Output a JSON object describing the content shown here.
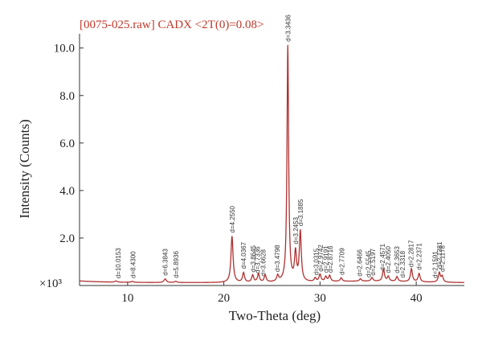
{
  "chart_data": {
    "type": "line",
    "title": "[0075-025.raw] CADX <2T(0)=0.08>",
    "xlabel": "Two-Theta (deg)",
    "ylabel": "Intensity (Counts)",
    "y_multiplier_label": "×10³",
    "xlim": [
      5,
      45
    ],
    "ylim": [
      0,
      10.6
    ],
    "x_ticks": [
      10,
      20,
      30,
      40
    ],
    "y_ticks": [
      2.0,
      4.0,
      6.0,
      8.0,
      10.0
    ],
    "y_tick_labels": [
      "2.0",
      "4.0",
      "6.0",
      "8.0",
      "10.0"
    ],
    "x_tick_labels": [
      "10",
      "20",
      "30",
      "40"
    ],
    "baseline": 0.12,
    "peaks": [
      {
        "x": 8.8,
        "y": 0.05,
        "w": 0.15
      },
      {
        "x": 10.5,
        "y": 0.04,
        "w": 0.15
      },
      {
        "x": 13.9,
        "y": 0.15,
        "w": 0.15
      },
      {
        "x": 15.0,
        "y": 0.05,
        "w": 0.15
      },
      {
        "x": 20.85,
        "y": 1.95,
        "w": 0.13
      },
      {
        "x": 22.05,
        "y": 0.4,
        "w": 0.12
      },
      {
        "x": 23.0,
        "y": 0.3,
        "w": 0.12
      },
      {
        "x": 23.6,
        "y": 0.35,
        "w": 0.12
      },
      {
        "x": 24.3,
        "y": 0.3,
        "w": 0.12
      },
      {
        "x": 25.6,
        "y": 0.25,
        "w": 0.12
      },
      {
        "x": 26.65,
        "y": 9.95,
        "w": 0.1
      },
      {
        "x": 27.45,
        "y": 1.2,
        "w": 0.12
      },
      {
        "x": 27.95,
        "y": 2.1,
        "w": 0.12
      },
      {
        "x": 29.5,
        "y": 0.15,
        "w": 0.12
      },
      {
        "x": 30.0,
        "y": 0.3,
        "w": 0.12
      },
      {
        "x": 30.6,
        "y": 0.2,
        "w": 0.12
      },
      {
        "x": 31.0,
        "y": 0.25,
        "w": 0.12
      },
      {
        "x": 32.2,
        "y": 0.15,
        "w": 0.12
      },
      {
        "x": 34.2,
        "y": 0.1,
        "w": 0.12
      },
      {
        "x": 35.4,
        "y": 0.15,
        "w": 0.12
      },
      {
        "x": 36.6,
        "y": 0.5,
        "w": 0.12
      },
      {
        "x": 37.1,
        "y": 0.2,
        "w": 0.12
      },
      {
        "x": 38.0,
        "y": 0.2,
        "w": 0.12
      },
      {
        "x": 39.5,
        "y": 0.55,
        "w": 0.12
      },
      {
        "x": 40.3,
        "y": 0.35,
        "w": 0.12
      },
      {
        "x": 42.4,
        "y": 0.4,
        "w": 0.12
      },
      {
        "x": 42.7,
        "y": 0.25,
        "w": 0.12
      }
    ],
    "peak_labels": [
      {
        "x": 9.0,
        "text": "d=10.0153"
      },
      {
        "x": 10.55,
        "text": "d=8.4300"
      },
      {
        "x": 13.9,
        "text": "d=6.3843"
      },
      {
        "x": 15.0,
        "text": "d=5.8936"
      },
      {
        "x": 20.85,
        "text": "d=4.2550"
      },
      {
        "x": 22.05,
        "text": "d=4.0367"
      },
      {
        "x": 23.05,
        "text": "d=3.8645"
      },
      {
        "x": 23.5,
        "text": "d=3.7336"
      },
      {
        "x": 24.1,
        "text": "d=3.6628"
      },
      {
        "x": 25.55,
        "text": "d=3.4798"
      },
      {
        "x": 26.65,
        "text": "d=3.3436"
      },
      {
        "x": 27.45,
        "text": "d=3.2453"
      },
      {
        "x": 27.95,
        "text": "d=3.1885"
      },
      {
        "x": 29.6,
        "text": "d=3.0315"
      },
      {
        "x": 30.05,
        "text": "d=2.9742"
      },
      {
        "x": 30.6,
        "text": "d=2.9191"
      },
      {
        "x": 31.05,
        "text": "d=2.8716"
      },
      {
        "x": 32.25,
        "text": "d=2.7709"
      },
      {
        "x": 34.1,
        "text": "d=2.6466"
      },
      {
        "x": 35.0,
        "text": "d=2.5545"
      },
      {
        "x": 35.5,
        "text": "d=2.5197"
      },
      {
        "x": 36.5,
        "text": "d=2.4571"
      },
      {
        "x": 37.05,
        "text": "d=2.4050"
      },
      {
        "x": 38.0,
        "text": "d=2.3653"
      },
      {
        "x": 38.55,
        "text": "d=2.3318"
      },
      {
        "x": 39.45,
        "text": "d=2.2817"
      },
      {
        "x": 40.3,
        "text": "d=2.2371"
      },
      {
        "x": 41.95,
        "text": "d=2.1591"
      },
      {
        "x": 42.4,
        "text": "d=2.1281"
      },
      {
        "x": 42.7,
        "text": "d=2.1178"
      }
    ],
    "colors": {
      "title": "#c0392b",
      "line": "#b03030",
      "axes": "#333333"
    }
  }
}
